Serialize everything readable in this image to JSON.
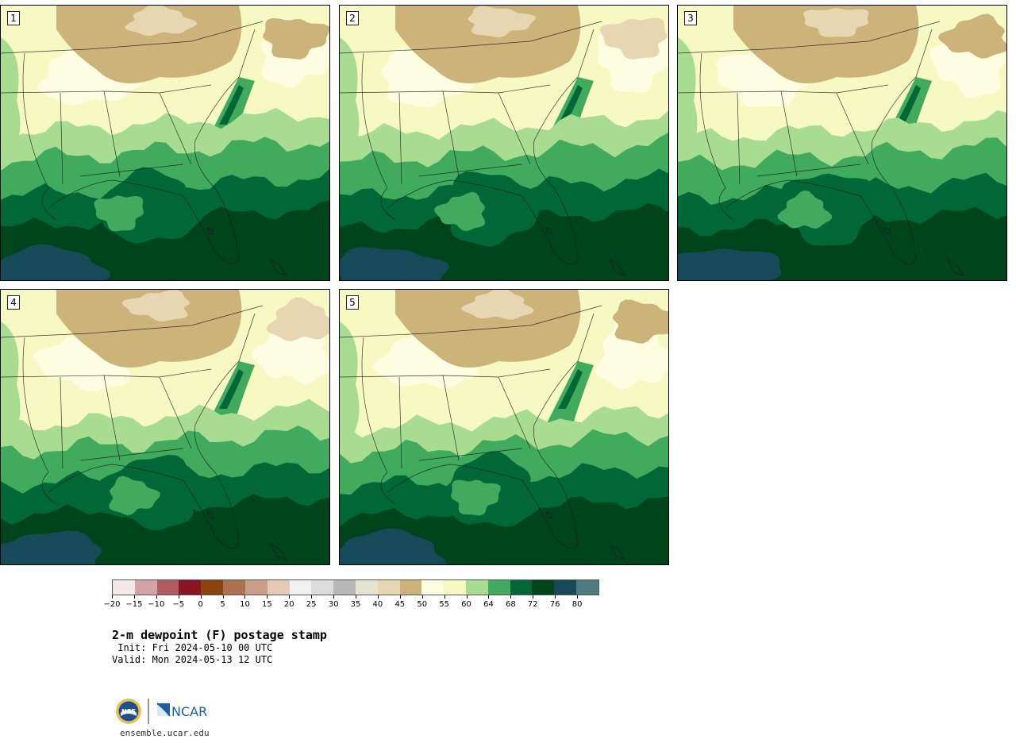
{
  "panels": [
    {
      "label": "1",
      "variant": 0
    },
    {
      "label": "2",
      "variant": 1
    },
    {
      "label": "3",
      "variant": 2
    },
    {
      "label": "4",
      "variant": 3
    },
    {
      "label": "5",
      "variant": 4
    }
  ],
  "colorbar": {
    "colors": [
      "#f5e8e8",
      "#d4a3a8",
      "#b15b63",
      "#8b1420",
      "#8b4410",
      "#ad7150",
      "#c99e86",
      "#e6c9b6",
      "#f1f1f1",
      "#dcdcdc",
      "#b8b8b8",
      "#e4e4d2",
      "#e6d6b2",
      "#cbb37a",
      "#fdfde2",
      "#f6f9c2",
      "#a8dc90",
      "#41ab5d",
      "#006837",
      "#00441b",
      "#174a58",
      "#4e7a80"
    ],
    "tick_labels": [
      "−20",
      "−15",
      "−10",
      "−5",
      "0",
      "5",
      "10",
      "15",
      "20",
      "25",
      "30",
      "35",
      "40",
      "45",
      "50",
      "55",
      "60",
      "64",
      "68",
      "72",
      "76",
      "80"
    ]
  },
  "title": "2-m dewpoint (F) postage stamp",
  "init": " Init: Fri 2024-05-10 00 UTC",
  "valid": "Valid: Mon 2024-05-13 12 UTC",
  "logo": {
    "left_text": "NSF",
    "right_text": "NCAR",
    "website": "ensemble.ucar.edu",
    "nsf_color": "#1d4f91",
    "ncar_color": "#1a5ea8"
  }
}
